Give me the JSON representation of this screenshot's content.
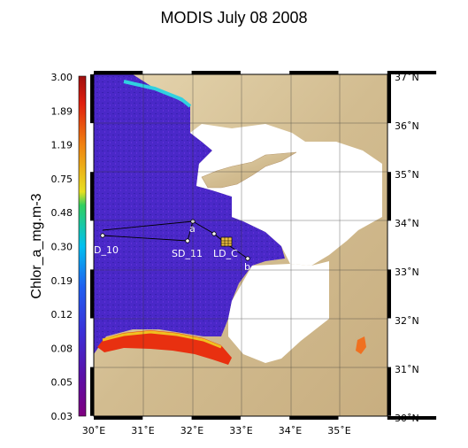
{
  "title": "MODIS July 08 2008",
  "colorbar": {
    "label": "Chlor_a_mg.m-3",
    "ticks": [
      "3.00",
      "1.89",
      "1.19",
      "0.75",
      "0.48",
      "0.30",
      "0.19",
      "0.12",
      "0.08",
      "0.05",
      "0.03"
    ],
    "colors": [
      "#800080",
      "#3a20c0",
      "#2060e8",
      "#00c8e8",
      "#40d040",
      "#f0e020",
      "#f08010",
      "#d01010",
      "#a01010"
    ]
  },
  "map": {
    "lon_labels": [
      "30˚E",
      "31˚E",
      "32˚E",
      "33˚E",
      "34˚E",
      "35˚E"
    ],
    "lat_labels": [
      "37˚N",
      "36˚N",
      "35˚N",
      "34˚N",
      "33˚N",
      "32˚N",
      "31˚N",
      "30˚N"
    ],
    "stations": {
      "a": "a",
      "b": "b",
      "d10": "D_10",
      "sd11": "SD_11",
      "ldc": "LD_C"
    },
    "colors": {
      "sea_chl": "#4a28c8",
      "land": "#d8c49c",
      "nodata": "#ffffff",
      "coast_bloom": "#e83010"
    }
  }
}
